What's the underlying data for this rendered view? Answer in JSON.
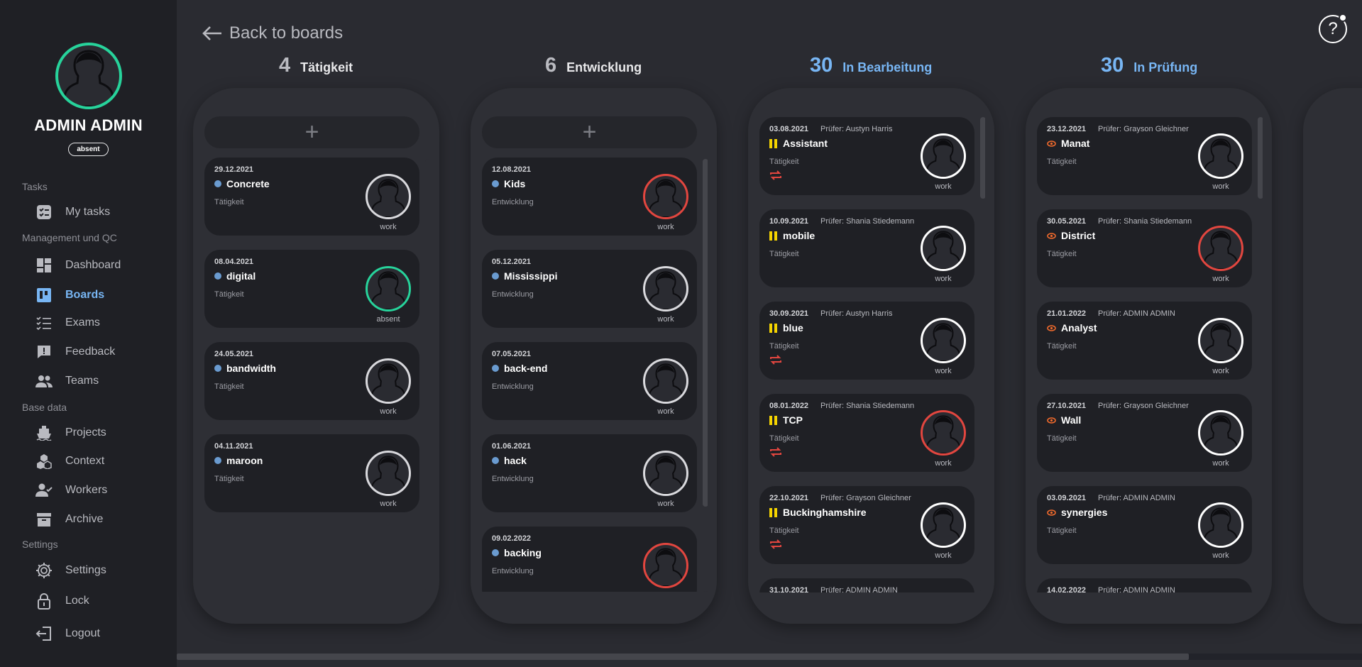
{
  "profile": {
    "name": "ADMIN ADMIN",
    "status": "absent"
  },
  "nav": {
    "sections": [
      {
        "label": "Tasks"
      },
      {
        "label": "Management und QC"
      },
      {
        "label": "Base data"
      },
      {
        "label": "Settings"
      }
    ],
    "items": [
      {
        "label": "My tasks",
        "icon": "tasks-icon"
      },
      {
        "label": "Dashboard",
        "icon": "dashboard-icon"
      },
      {
        "label": "Boards",
        "icon": "boards-icon",
        "active": true
      },
      {
        "label": "Exams",
        "icon": "checklist-icon"
      },
      {
        "label": "Feedback",
        "icon": "feedback-icon"
      },
      {
        "label": "Teams",
        "icon": "people-icon"
      },
      {
        "label": "Projects",
        "icon": "ship-icon"
      },
      {
        "label": "Context",
        "icon": "cubes-icon"
      },
      {
        "label": "Workers",
        "icon": "worker-check-icon"
      },
      {
        "label": "Archive",
        "icon": "archive-icon"
      },
      {
        "label": "Settings",
        "icon": "gear-icon"
      },
      {
        "label": "Lock",
        "icon": "lock-icon"
      },
      {
        "label": "Logout",
        "icon": "logout-icon"
      }
    ]
  },
  "header": {
    "back_label": "Back to boards",
    "help_symbol": "?"
  },
  "colors": {
    "accent": "#78b6f4",
    "green": "#27d39b",
    "red": "#e2463f",
    "yellow": "#f5d400",
    "orange": "#f06a2c"
  },
  "columns": [
    {
      "count": "4",
      "title": "Tätigkeit",
      "add_symbol": "+",
      "cards": [
        {
          "date": "29.12.2021",
          "name": "Concrete",
          "category": "Tätigkeit",
          "avatar_label": "work"
        },
        {
          "date": "08.04.2021",
          "name": "digital",
          "category": "Tätigkeit",
          "avatar_label": "absent"
        },
        {
          "date": "24.05.2021",
          "name": "bandwidth",
          "category": "Tätigkeit",
          "avatar_label": "work"
        },
        {
          "date": "04.11.2021",
          "name": "maroon",
          "category": "Tätigkeit",
          "avatar_label": "work"
        }
      ]
    },
    {
      "count": "6",
      "title": "Entwicklung",
      "add_symbol": "+",
      "cards": [
        {
          "date": "12.08.2021",
          "name": "Kids",
          "category": "Entwicklung",
          "avatar_label": "work"
        },
        {
          "date": "05.12.2021",
          "name": "Mississippi",
          "category": "Entwicklung",
          "avatar_label": "work"
        },
        {
          "date": "07.05.2021",
          "name": "back-end",
          "category": "Entwicklung",
          "avatar_label": "work"
        },
        {
          "date": "01.06.2021",
          "name": "hack",
          "category": "Entwicklung",
          "avatar_label": "work"
        },
        {
          "date": "09.02.2022",
          "name": "backing",
          "category": "Entwicklung",
          "avatar_label": ""
        }
      ]
    },
    {
      "count": "30",
      "title": "In Bearbeitung",
      "cards": [
        {
          "date": "03.08.2021",
          "reviewer": "Prüfer: Austyn Harris",
          "name": "Assistant",
          "category": "Tätigkeit",
          "avatar_label": "work"
        },
        {
          "date": "10.09.2021",
          "reviewer": "Prüfer: Shania Stiedemann",
          "name": "mobile",
          "category": "Tätigkeit",
          "avatar_label": "work"
        },
        {
          "date": "30.09.2021",
          "reviewer": "Prüfer: Austyn Harris",
          "name": "blue",
          "category": "Tätigkeit",
          "avatar_label": "work"
        },
        {
          "date": "08.01.2022",
          "reviewer": "Prüfer: Shania Stiedemann",
          "name": "TCP",
          "category": "Tätigkeit",
          "avatar_label": "work"
        },
        {
          "date": "22.10.2021",
          "reviewer": "Prüfer: Grayson Gleichner",
          "name": "Buckinghamshire",
          "category": "Tätigkeit",
          "avatar_label": "work"
        },
        {
          "date": "31.10.2021",
          "reviewer": "Prüfer: ADMIN ADMIN",
          "name": "",
          "category": "",
          "avatar_label": ""
        }
      ]
    },
    {
      "count": "30",
      "title": "In Prüfung",
      "cards": [
        {
          "date": "23.12.2021",
          "reviewer": "Prüfer: Grayson Gleichner",
          "name": "Manat",
          "category": "Tätigkeit",
          "avatar_label": "work"
        },
        {
          "date": "30.05.2021",
          "reviewer": "Prüfer: Shania Stiedemann",
          "name": "District",
          "category": "Tätigkeit",
          "avatar_label": "work"
        },
        {
          "date": "21.01.2022",
          "reviewer": "Prüfer: ADMIN ADMIN",
          "name": "Analyst",
          "category": "Tätigkeit",
          "avatar_label": "work"
        },
        {
          "date": "27.10.2021",
          "reviewer": "Prüfer: Grayson Gleichner",
          "name": "Wall",
          "category": "Tätigkeit",
          "avatar_label": "work"
        },
        {
          "date": "03.09.2021",
          "reviewer": "Prüfer: ADMIN ADMIN",
          "name": "synergies",
          "category": "Tätigkeit",
          "avatar_label": "work"
        },
        {
          "date": "14.02.2022",
          "reviewer": "Prüfer: ADMIN ADMIN",
          "name": "",
          "category": "",
          "avatar_label": ""
        }
      ]
    }
  ]
}
